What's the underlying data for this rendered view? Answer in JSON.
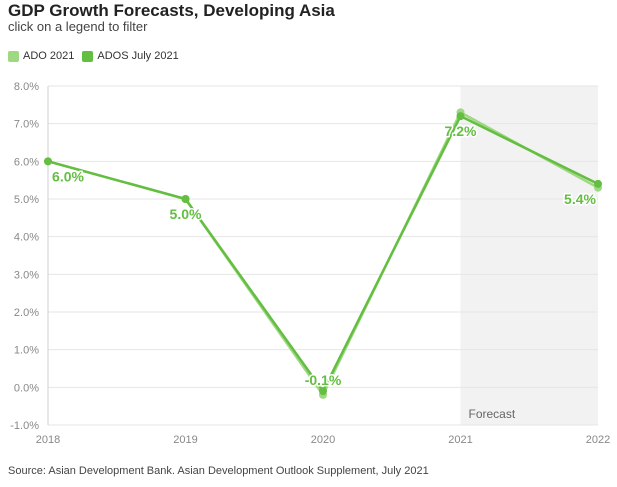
{
  "chart_data": {
    "type": "line",
    "title": "GDP Growth Forecasts, Developing Asia",
    "subtitle": "click on a legend to filter",
    "categories": [
      "2018",
      "2019",
      "2020",
      "2021",
      "2022"
    ],
    "series": [
      {
        "name": "ADO 2021",
        "color": "#9ed882",
        "values": [
          6.0,
          5.0,
          -0.2,
          7.3,
          5.3
        ]
      },
      {
        "name": "ADOS July 2021",
        "color": "#63be41",
        "values": [
          6.0,
          5.0,
          -0.1,
          7.2,
          5.4
        ]
      }
    ],
    "data_labels": [
      "6.0%",
      "5.0%",
      "-0.1%",
      "7.2%",
      "5.4%"
    ],
    "ylim": [
      -1,
      8
    ],
    "yticks": [
      "-1.0%",
      "0.0%",
      "1.0%",
      "2.0%",
      "3.0%",
      "4.0%",
      "5.0%",
      "6.0%",
      "7.0%",
      "8.0%"
    ],
    "ytick_values": [
      -1,
      0,
      1,
      2,
      3,
      4,
      5,
      6,
      7,
      8
    ],
    "shaded_region": {
      "from": "2021",
      "to": "2022",
      "label": "Forecast"
    },
    "source": "Source: Asian Development Bank. Asian Development Outlook Supplement, July 2021",
    "grid": true,
    "legend_position": "top-left"
  }
}
